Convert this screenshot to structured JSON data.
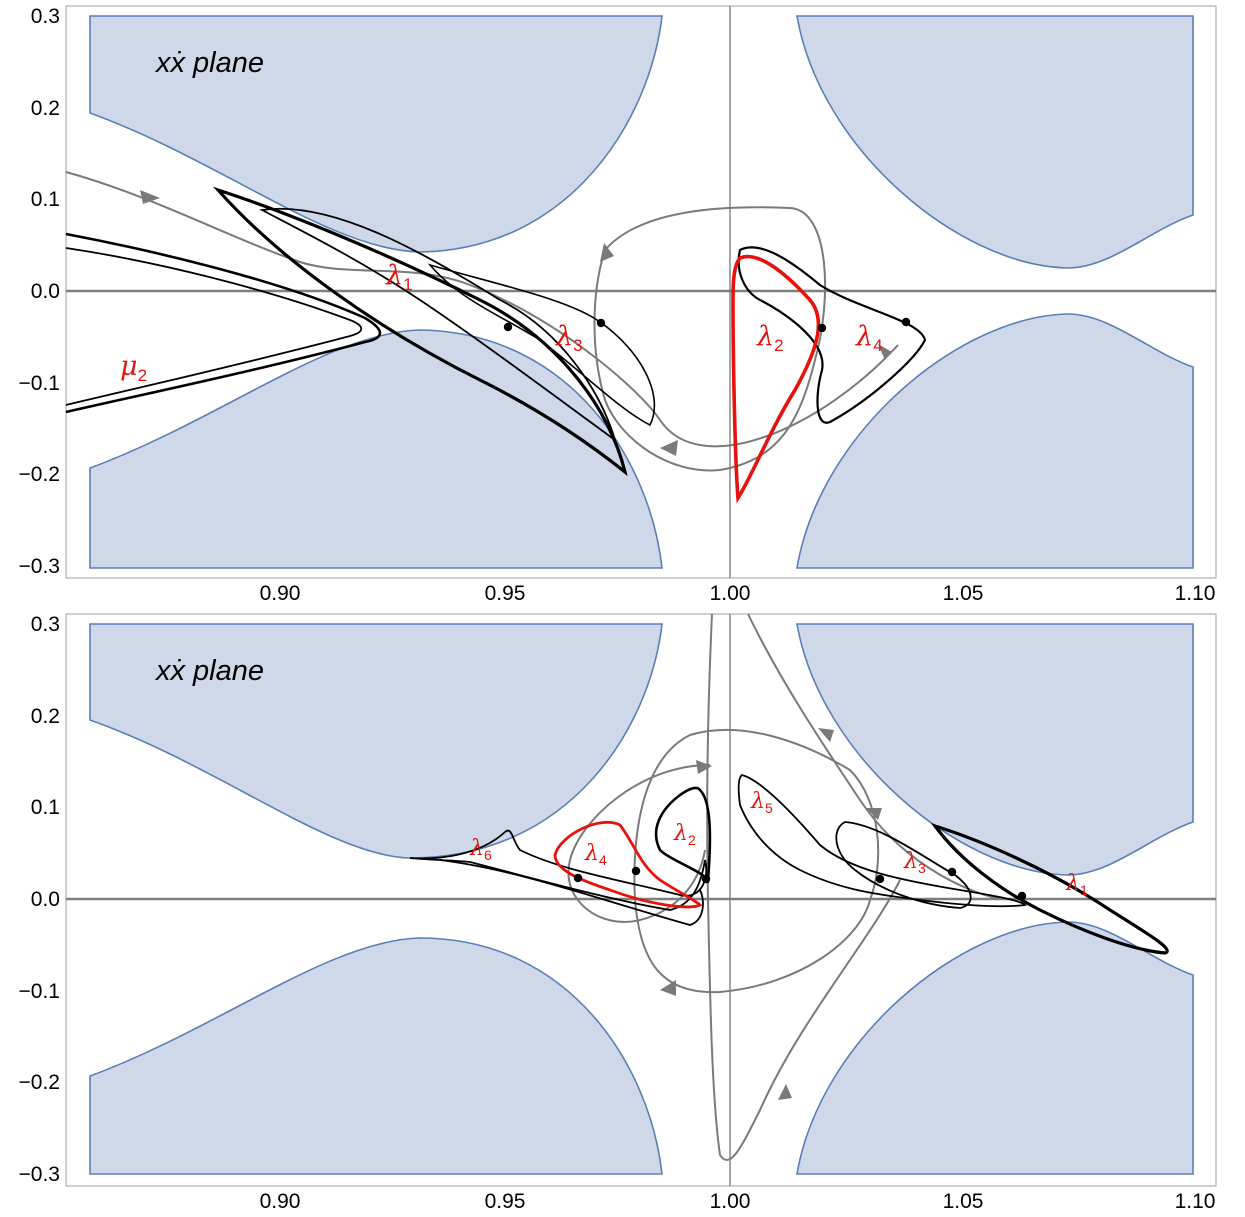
{
  "panels": [
    {
      "id": "top",
      "plane_label": "xẋ plane",
      "x_ticks": [
        "0.90",
        "0.95",
        "1.00",
        "1.05",
        "1.10"
      ],
      "y_ticks": [
        "0.3",
        "0.2",
        "0.1",
        "0.0",
        "−0.1",
        "−0.2",
        "−0.3"
      ],
      "orbit_labels": [
        {
          "name": "lambda1",
          "symbol": "λ",
          "sub": "1"
        },
        {
          "name": "lambda3",
          "symbol": "λ",
          "sub": "3"
        },
        {
          "name": "lambda2",
          "symbol": "λ",
          "sub": "2"
        },
        {
          "name": "lambda4",
          "symbol": "λ",
          "sub": "4"
        },
        {
          "name": "mu2",
          "symbol": "μ",
          "sub": "2"
        }
      ]
    },
    {
      "id": "bottom",
      "plane_label": "xẋ plane",
      "x_ticks": [
        "0.90",
        "0.95",
        "1.00",
        "1.05",
        "1.10"
      ],
      "y_ticks": [
        "0.3",
        "0.2",
        "0.1",
        "0.0",
        "−0.1",
        "−0.2",
        "−0.3"
      ],
      "orbit_labels": [
        {
          "name": "lambda6",
          "symbol": "λ",
          "sub": "6"
        },
        {
          "name": "lambda4",
          "symbol": "λ",
          "sub": "4"
        },
        {
          "name": "lambda2",
          "symbol": "λ",
          "sub": "2"
        },
        {
          "name": "lambda5",
          "symbol": "λ",
          "sub": "5"
        },
        {
          "name": "lambda3",
          "symbol": "λ",
          "sub": "3"
        },
        {
          "name": "lambda1",
          "symbol": "λ",
          "sub": "1"
        }
      ]
    }
  ],
  "colors": {
    "forbidden_region_fill": "#cfd8e8",
    "forbidden_region_stroke": "#5a7fb7",
    "orbit_highlight": "#e8120c",
    "orbit_main": "#000000",
    "manifold": "#7a7a7a"
  }
}
